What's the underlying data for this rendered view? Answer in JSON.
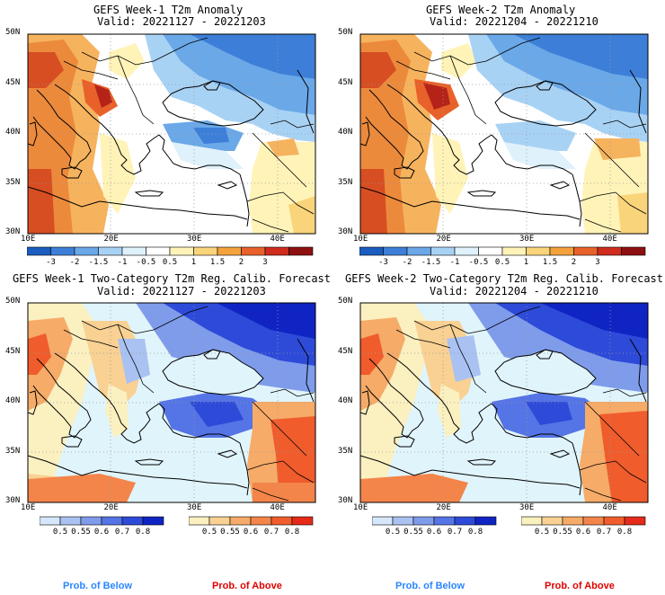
{
  "panels": {
    "p1": {
      "title": "GEFS Week-1 T2m Anomaly",
      "valid": "Valid: 20221127 - 20221203"
    },
    "p2": {
      "title": "GEFS Week-2 T2m Anomaly",
      "valid": "Valid: 20221204 - 20221210"
    },
    "p3": {
      "title": "GEFS Week-1 Two-Category T2m Reg. Calib. Forecast",
      "valid": "Valid: 20221127 - 20221203"
    },
    "p4": {
      "title": "GEFS Week-2 Two-Category T2m Reg. Calib. Forecast",
      "valid": "Valid: 20221204 - 20221210"
    }
  },
  "axes": {
    "lat_labels": [
      "50N",
      "45N",
      "40N",
      "35N",
      "30N"
    ],
    "lon_labels": [
      "10E",
      "20E",
      "30E",
      "40E"
    ]
  },
  "anomaly_colorbar": {
    "labels": [
      "-3",
      "-2",
      "-1.5",
      "-1",
      "-0.5",
      "0.5",
      "1",
      "1.5",
      "2",
      "3"
    ],
    "colors": [
      "#1a5cc0",
      "#3d7fd8",
      "#6aa8e8",
      "#a8d2f4",
      "#dff1fb",
      "#ffffff",
      "#fff3b8",
      "#fad47a",
      "#f4a23c",
      "#e9612a",
      "#cf2c1e",
      "#8f1010"
    ]
  },
  "prob_below_colorbar": {
    "labels": [
      "0.5",
      "0.55",
      "0.6",
      "0.7",
      "0.8"
    ],
    "colors": [
      "#d6e6fb",
      "#a9c2f2",
      "#7f9ceb",
      "#5574e5",
      "#2d4ad9",
      "#1024c4"
    ]
  },
  "prob_above_colorbar": {
    "labels": [
      "0.5",
      "0.55",
      "0.6",
      "0.7",
      "0.8"
    ],
    "colors": [
      "#fbf0c0",
      "#f8d193",
      "#f6ab68",
      "#f3854a",
      "#f05c2c",
      "#e62a1a"
    ]
  },
  "footer": {
    "below_label": "Prob. of Below",
    "above_label": "Prob. of Above",
    "below_color": "#2b86ff",
    "above_color": "#e00000"
  }
}
